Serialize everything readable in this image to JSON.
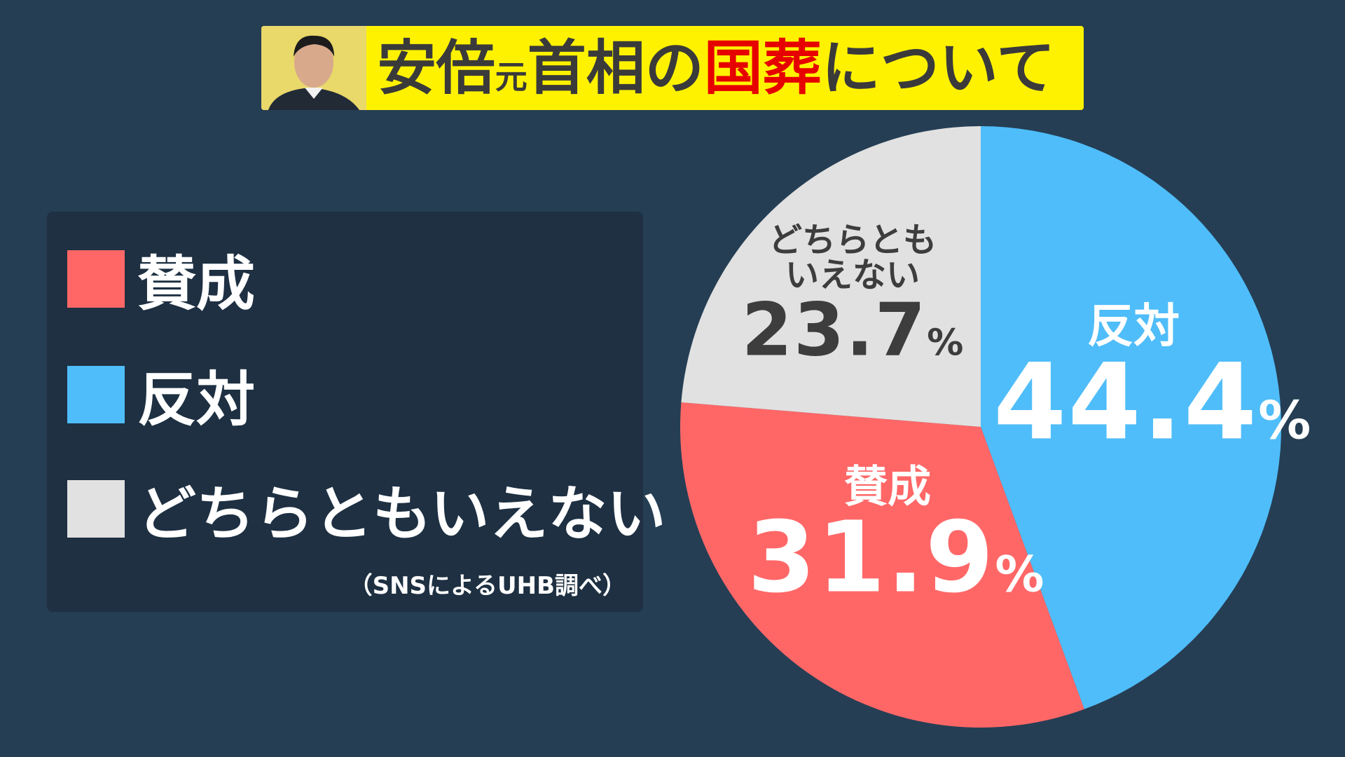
{
  "chart_data": {
    "type": "pie",
    "title": [
      "安倍",
      "元",
      "首相の",
      "国葬",
      "について"
    ],
    "categories": [
      "賛成",
      "反対",
      "どちらともいえない"
    ],
    "values": [
      31.9,
      44.4,
      23.7
    ],
    "unit": "%",
    "colors": [
      "#ff6767",
      "#4fbdf9",
      "#e1e1e1"
    ],
    "legend": "left",
    "note": "（SNSによるUHB調べ）"
  }
}
